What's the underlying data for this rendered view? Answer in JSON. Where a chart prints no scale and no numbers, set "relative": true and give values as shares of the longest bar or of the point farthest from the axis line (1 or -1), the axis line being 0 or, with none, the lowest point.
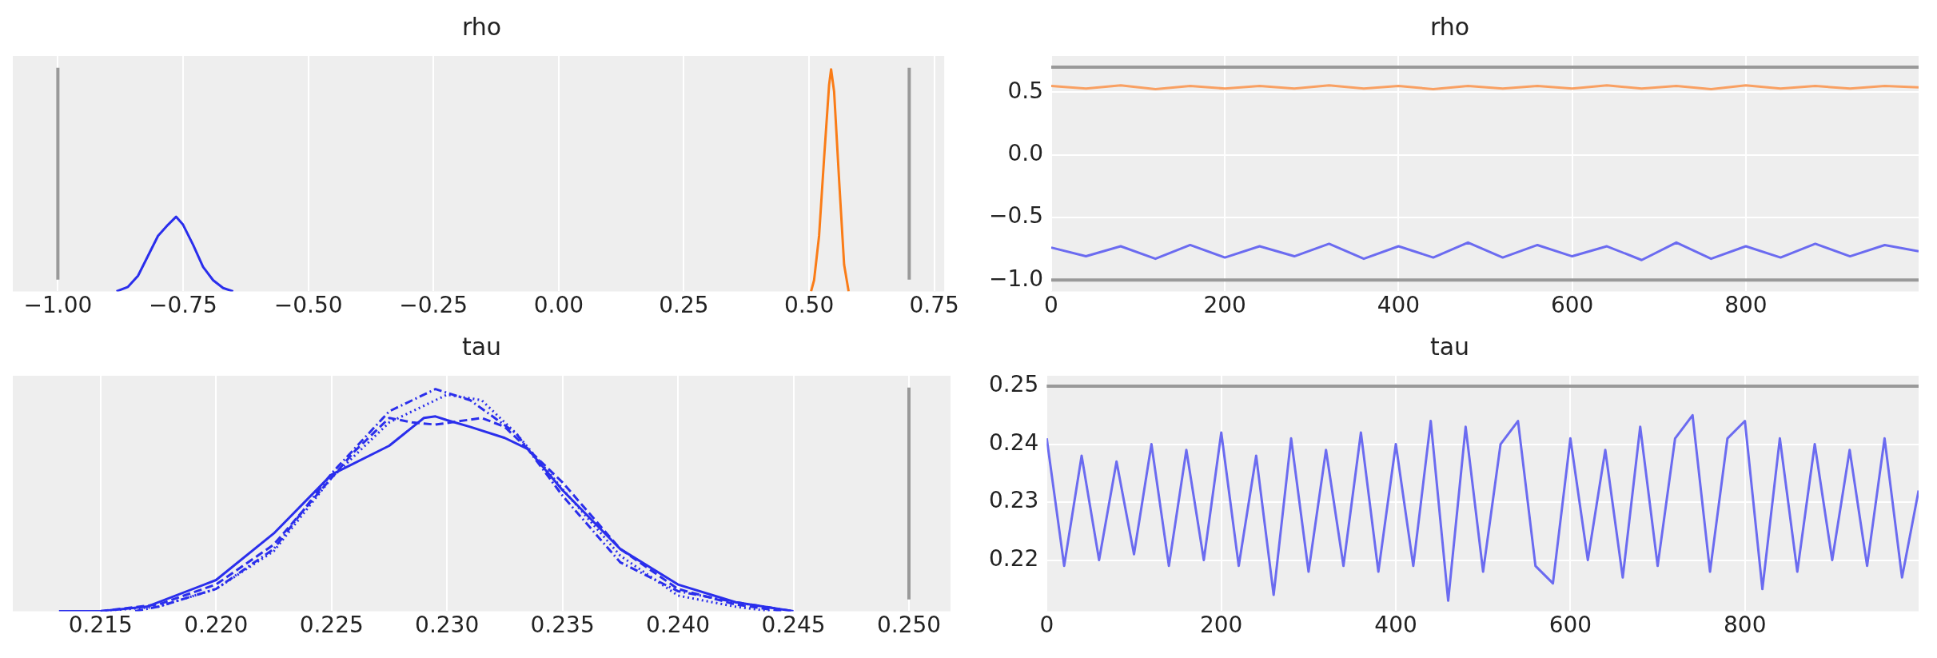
{
  "chart_data": [
    {
      "type": "line",
      "title": "rho",
      "relative": true,
      "tick_labels": "x",
      "grid": "x",
      "xlim": [
        -1.09,
        0.77
      ],
      "xticks": [
        {
          "value": -1,
          "label": "−1.00"
        },
        {
          "value": -0.75,
          "label": "−0.75"
        },
        {
          "value": -0.5,
          "label": "−0.50"
        },
        {
          "value": -0.25,
          "label": "−0.25"
        },
        {
          "value": 0,
          "label": "0.00"
        },
        {
          "value": 0.25,
          "label": "0.25"
        },
        {
          "value": 0.5,
          "label": "0.50"
        },
        {
          "value": 0.75,
          "label": "0.75"
        }
      ],
      "ref_lines": [
        {
          "axis": "x",
          "value": -1,
          "color": "#999999"
        },
        {
          "axis": "x",
          "value": 0.7,
          "color": "#999999"
        }
      ],
      "series": [
        {
          "color": "#2a2eec",
          "line_style": "solid",
          "x": [
            -0.883,
            -0.86,
            -0.84,
            -0.82,
            -0.8,
            -0.78,
            -0.764,
            -0.75,
            -0.73,
            -0.71,
            -0.69,
            -0.67,
            -0.65
          ],
          "values": [
            0,
            0.02,
            0.07,
            0.16,
            0.25,
            0.3,
            0.336,
            0.3,
            0.21,
            0.11,
            0.05,
            0.015,
            0
          ]
        },
        {
          "color": "#fa7c17",
          "line_style": "solid",
          "x": [
            0.504,
            0.51,
            0.52,
            0.53,
            0.54,
            0.544,
            0.55,
            0.56,
            0.57,
            0.579
          ],
          "values": [
            0,
            0.05,
            0.25,
            0.6,
            0.93,
            1,
            0.9,
            0.5,
            0.12,
            0
          ]
        }
      ]
    },
    {
      "type": "line",
      "title": "rho",
      "grid": true,
      "xlim": [
        0,
        999
      ],
      "xticks": [
        0,
        200,
        400,
        600,
        800
      ],
      "ylim": [
        -1.09,
        0.79
      ],
      "yticks": [
        {
          "value": -1,
          "label": "−1.0"
        },
        {
          "value": -0.5,
          "label": "−0.5"
        },
        {
          "value": 0,
          "label": "0.0"
        },
        {
          "value": 0.5,
          "label": "0.5"
        }
      ],
      "ref_lines": [
        {
          "axis": "y",
          "value": 0.7,
          "color": "#999999"
        },
        {
          "axis": "y",
          "value": -1,
          "color": "#999999"
        }
      ],
      "series": [
        {
          "color": "#f9a062",
          "line_style": "solid",
          "x": [
            0,
            40,
            80,
            120,
            160,
            200,
            240,
            280,
            320,
            360,
            400,
            440,
            480,
            520,
            560,
            600,
            640,
            680,
            720,
            760,
            800,
            840,
            880,
            920,
            960,
            999
          ],
          "values": [
            0.55,
            0.53,
            0.555,
            0.525,
            0.55,
            0.53,
            0.55,
            0.53,
            0.555,
            0.53,
            0.55,
            0.525,
            0.55,
            0.53,
            0.55,
            0.53,
            0.555,
            0.53,
            0.55,
            0.525,
            0.555,
            0.53,
            0.55,
            0.53,
            0.55,
            0.54
          ]
        },
        {
          "color": "#6b6bf0",
          "line_style": "solid",
          "x": [
            0,
            40,
            80,
            120,
            160,
            200,
            240,
            280,
            320,
            360,
            400,
            440,
            480,
            520,
            560,
            600,
            640,
            680,
            720,
            760,
            800,
            840,
            880,
            920,
            960,
            999
          ],
          "values": [
            -0.74,
            -0.81,
            -0.73,
            -0.83,
            -0.72,
            -0.82,
            -0.73,
            -0.81,
            -0.71,
            -0.83,
            -0.73,
            -0.82,
            -0.7,
            -0.82,
            -0.72,
            -0.81,
            -0.73,
            -0.84,
            -0.7,
            -0.83,
            -0.73,
            -0.82,
            -0.71,
            -0.81,
            -0.72,
            -0.77
          ]
        }
      ]
    },
    {
      "type": "line",
      "title": "tau",
      "relative": true,
      "tick_labels": "x",
      "grid": "x",
      "xlim": [
        0.2112,
        0.2518
      ],
      "xticks": [
        {
          "value": 0.215,
          "label": "0.215"
        },
        {
          "value": 0.22,
          "label": "0.220"
        },
        {
          "value": 0.225,
          "label": "0.225"
        },
        {
          "value": 0.23,
          "label": "0.230"
        },
        {
          "value": 0.235,
          "label": "0.235"
        },
        {
          "value": 0.24,
          "label": "0.240"
        },
        {
          "value": 0.245,
          "label": "0.245"
        },
        {
          "value": 0.25,
          "label": "0.250"
        }
      ],
      "ref_lines": [
        {
          "axis": "x",
          "value": 0.25,
          "color": "#999999"
        }
      ],
      "series": [
        {
          "color": "#2a2eec",
          "line_style": "solid",
          "x": [
            0.2132,
            0.215,
            0.217,
            0.22,
            0.2225,
            0.225,
            0.2275,
            0.229,
            0.2295,
            0.23,
            0.231,
            0.2325,
            0.2335,
            0.235,
            0.2375,
            0.24,
            0.2425,
            0.245
          ],
          "values": [
            0,
            0,
            0.02,
            0.14,
            0.35,
            0.615,
            0.745,
            0.87,
            0.877,
            0.86,
            0.83,
            0.78,
            0.73,
            0.545,
            0.28,
            0.12,
            0.04,
            0
          ]
        },
        {
          "color": "#2a2eec",
          "line_style": "dashed",
          "x": [
            0.215,
            0.2175,
            0.22,
            0.2225,
            0.225,
            0.226,
            0.2275,
            0.2285,
            0.2295,
            0.2315,
            0.2325,
            0.234,
            0.235,
            0.2375,
            0.24,
            0.2425,
            0.2445
          ],
          "values": [
            0,
            0.03,
            0.12,
            0.3,
            0.6,
            0.72,
            0.87,
            0.85,
            0.84,
            0.87,
            0.83,
            0.68,
            0.58,
            0.28,
            0.1,
            0.03,
            0
          ]
        },
        {
          "color": "#2a2eec",
          "line_style": "dotted",
          "x": [
            0.215,
            0.2175,
            0.22,
            0.2225,
            0.225,
            0.2275,
            0.23,
            0.2315,
            0.233,
            0.235,
            0.2375,
            0.24,
            0.2425,
            0.244
          ],
          "values": [
            0,
            0.02,
            0.1,
            0.27,
            0.6,
            0.85,
            0.975,
            0.95,
            0.8,
            0.55,
            0.25,
            0.07,
            0.02,
            0
          ]
        },
        {
          "color": "#2a2eec",
          "line_style": "dashdot",
          "x": [
            0.2165,
            0.2175,
            0.22,
            0.2225,
            0.225,
            0.2275,
            0.2295,
            0.231,
            0.233,
            0.235,
            0.2375,
            0.24,
            0.2425,
            0.245
          ],
          "values": [
            0,
            0.02,
            0.1,
            0.28,
            0.62,
            0.9,
            1,
            0.95,
            0.8,
            0.52,
            0.22,
            0.09,
            0.04,
            0
          ]
        }
      ]
    },
    {
      "type": "line",
      "title": "tau",
      "grid": true,
      "xlim": [
        0,
        999
      ],
      "xticks": [
        0,
        200,
        400,
        600,
        800
      ],
      "ylim": [
        0.2112,
        0.2518
      ],
      "yticks": [
        {
          "value": 0.22,
          "label": "0.22"
        },
        {
          "value": 0.23,
          "label": "0.23"
        },
        {
          "value": 0.24,
          "label": "0.24"
        },
        {
          "value": 0.25,
          "label": "0.25"
        }
      ],
      "ref_lines": [
        {
          "axis": "y",
          "value": 0.25,
          "color": "#999999"
        }
      ],
      "series": [
        {
          "color": "#6b6bf0",
          "line_style": "solid",
          "x": [
            0,
            20,
            40,
            60,
            80,
            100,
            120,
            140,
            160,
            180,
            200,
            220,
            240,
            260,
            280,
            300,
            320,
            340,
            360,
            380,
            400,
            420,
            440,
            460,
            480,
            500,
            520,
            540,
            560,
            580,
            600,
            620,
            640,
            660,
            680,
            700,
            720,
            740,
            760,
            780,
            800,
            820,
            840,
            860,
            880,
            900,
            920,
            940,
            960,
            980,
            999
          ],
          "values": [
            0.241,
            0.219,
            0.238,
            0.22,
            0.237,
            0.221,
            0.24,
            0.219,
            0.239,
            0.22,
            0.242,
            0.219,
            0.238,
            0.214,
            0.241,
            0.218,
            0.239,
            0.219,
            0.242,
            0.218,
            0.24,
            0.219,
            0.244,
            0.213,
            0.243,
            0.218,
            0.24,
            0.244,
            0.219,
            0.216,
            0.241,
            0.22,
            0.239,
            0.217,
            0.243,
            0.219,
            0.241,
            0.245,
            0.218,
            0.241,
            0.244,
            0.215,
            0.241,
            0.218,
            0.24,
            0.22,
            0.239,
            0.219,
            0.241,
            0.217,
            0.232
          ]
        }
      ]
    }
  ]
}
